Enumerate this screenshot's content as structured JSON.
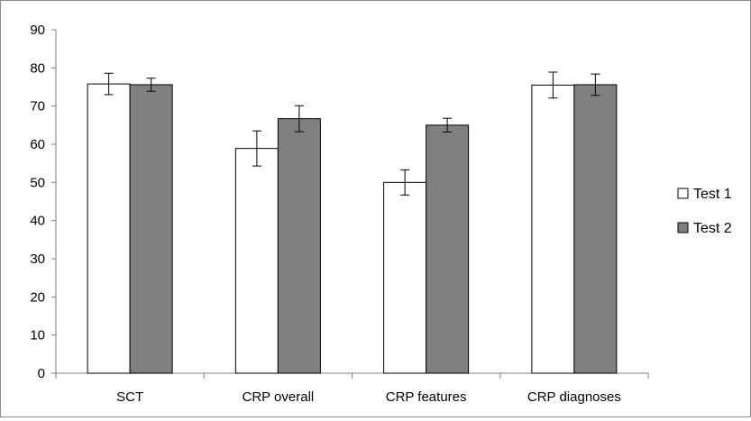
{
  "chart_data": {
    "type": "bar",
    "categories": [
      "SCT",
      "CRP overall",
      "CRP features",
      "CRP diagnoses"
    ],
    "series": [
      {
        "name": "Test 1",
        "color": "#ffffff",
        "values": [
          75.8,
          58.9,
          50.0,
          75.5
        ],
        "error": [
          2.8,
          4.6,
          3.3,
          3.4
        ]
      },
      {
        "name": "Test 2",
        "color": "#808080",
        "values": [
          75.6,
          66.7,
          65.0,
          75.6
        ],
        "error": [
          1.7,
          3.4,
          1.8,
          2.8
        ]
      }
    ],
    "ylim": [
      0,
      90
    ],
    "yticks": [
      0,
      10,
      20,
      30,
      40,
      50,
      60,
      70,
      80,
      90
    ],
    "grid": false,
    "legend_position": "right"
  }
}
